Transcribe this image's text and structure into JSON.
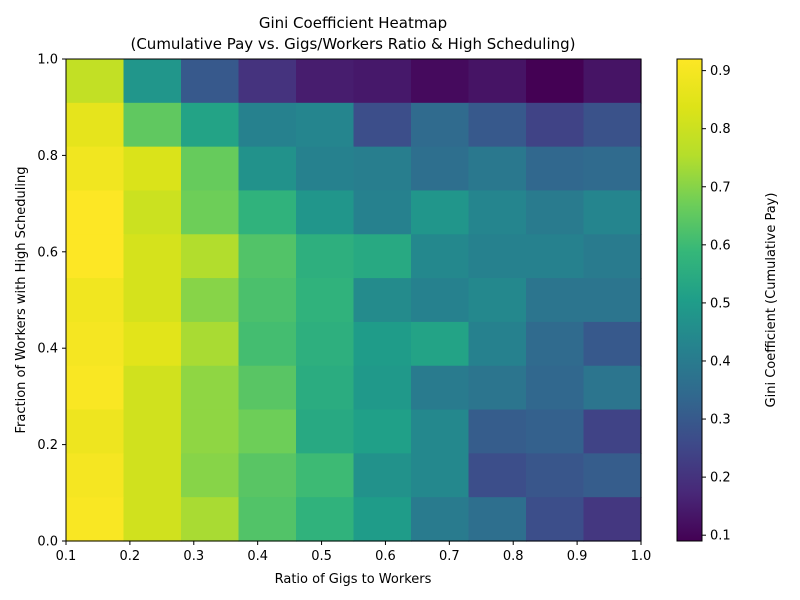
{
  "chart_data": {
    "type": "heatmap",
    "title_line1": "Gini Coefficient Heatmap",
    "title_line2": "(Cumulative Pay vs. Gigs/Workers Ratio & High Scheduling)",
    "xlabel": "Ratio of Gigs to Workers",
    "ylabel": "Fraction of Workers with High Scheduling",
    "colorbar_label": "Gini Coefficient (Cumulative Pay)",
    "colormap": "viridis",
    "xlim": [
      0.1,
      1.0
    ],
    "ylim": [
      0.0,
      1.0
    ],
    "x_ticks": [
      "0.1",
      "0.2",
      "0.3",
      "0.4",
      "0.5",
      "0.6",
      "0.7",
      "0.8",
      "0.9",
      "1.0"
    ],
    "y_ticks": [
      "0.0",
      "0.2",
      "0.4",
      "0.6",
      "0.8",
      "1.0"
    ],
    "colorbar_range": [
      0.09,
      0.92
    ],
    "colorbar_ticks": [
      "0.1",
      "0.2",
      "0.3",
      "0.4",
      "0.5",
      "0.6",
      "0.7",
      "0.8",
      "0.9"
    ],
    "rows_top_to_bottom": [
      [
        0.78,
        0.48,
        0.3,
        0.2,
        0.15,
        0.14,
        0.11,
        0.13,
        0.09,
        0.13
      ],
      [
        0.86,
        0.65,
        0.52,
        0.42,
        0.43,
        0.27,
        0.35,
        0.3,
        0.24,
        0.28
      ],
      [
        0.89,
        0.83,
        0.66,
        0.47,
        0.42,
        0.41,
        0.36,
        0.39,
        0.34,
        0.35
      ],
      [
        0.92,
        0.8,
        0.67,
        0.57,
        0.48,
        0.42,
        0.48,
        0.43,
        0.4,
        0.43
      ],
      [
        0.92,
        0.82,
        0.75,
        0.63,
        0.56,
        0.54,
        0.44,
        0.42,
        0.42,
        0.4
      ],
      [
        0.89,
        0.82,
        0.7,
        0.62,
        0.57,
        0.45,
        0.42,
        0.44,
        0.38,
        0.38
      ],
      [
        0.9,
        0.85,
        0.74,
        0.61,
        0.56,
        0.5,
        0.52,
        0.42,
        0.35,
        0.3
      ],
      [
        0.91,
        0.81,
        0.71,
        0.64,
        0.55,
        0.49,
        0.4,
        0.38,
        0.34,
        0.38
      ],
      [
        0.88,
        0.81,
        0.71,
        0.67,
        0.54,
        0.51,
        0.44,
        0.31,
        0.32,
        0.24
      ],
      [
        0.9,
        0.81,
        0.7,
        0.64,
        0.6,
        0.47,
        0.44,
        0.27,
        0.29,
        0.31
      ],
      [
        0.91,
        0.81,
        0.74,
        0.63,
        0.57,
        0.5,
        0.4,
        0.36,
        0.27,
        0.21
      ]
    ]
  }
}
